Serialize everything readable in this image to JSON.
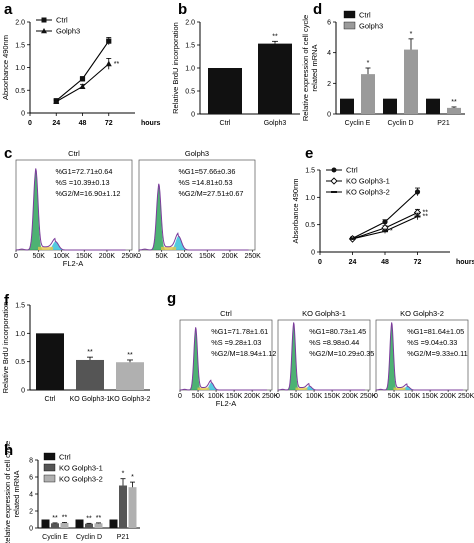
{
  "colors": {
    "ctrl": "#111111",
    "golph3": "#9a9a9a",
    "ko1": "#555555",
    "ko2": "#b0b0b0",
    "hist_purple": "#7b3c9b",
    "hist_green": "#2ea55a",
    "hist_cyan": "#36c1d9"
  },
  "chart_data": [
    {
      "panel": "a",
      "type": "line",
      "x": [
        0,
        24,
        48,
        72
      ],
      "xticks": [
        0,
        24,
        48,
        72
      ],
      "xunit": "hours",
      "xlim": [
        0,
        96
      ],
      "ylim": [
        0,
        2.0
      ],
      "yticks": [
        0,
        0.5,
        1.0,
        1.5,
        2.0
      ],
      "ytick_labels": [
        "0",
        "0.5",
        "1.0",
        "1.5",
        "2.0"
      ],
      "ylabel": "Absorbance 490nm",
      "series": [
        {
          "name": "Ctrl",
          "values": [
            null,
            0.27,
            0.75,
            1.58
          ],
          "errors": [
            null,
            0.03,
            0.05,
            0.08
          ],
          "marker": "square"
        },
        {
          "name": "Golph3",
          "values": [
            null,
            0.25,
            0.58,
            1.08
          ],
          "errors": [
            null,
            0.03,
            0.05,
            0.12
          ],
          "marker": "triangle"
        }
      ],
      "annotations": [
        {
          "text": "**",
          "x": 72,
          "series": 1
        }
      ]
    },
    {
      "panel": "b",
      "type": "bar",
      "categories": [
        "Ctrl",
        "Golph3"
      ],
      "values": [
        1.0,
        1.53
      ],
      "errors": [
        0,
        0.05
      ],
      "ylim": [
        0,
        2.0
      ],
      "yticks": [
        0,
        0.5,
        1.0,
        1.5,
        2.0
      ],
      "ytick_labels": [
        "0",
        "0.5",
        "1.0",
        "1.5",
        "2.0"
      ],
      "ylabel": "Relative BrdU incorporation",
      "bar_colors": [
        "#111111",
        "#111111"
      ],
      "annotations": [
        {
          "text": "**",
          "index": 1
        }
      ]
    },
    {
      "panel": "d",
      "type": "bar",
      "categories": [
        "Cyclin E",
        "Cyclin D",
        "P21"
      ],
      "ylim": [
        0,
        6
      ],
      "yticks": [
        0,
        2,
        4,
        6
      ],
      "ytick_labels": [
        "0",
        "2",
        "4",
        "6"
      ],
      "ylabel": "Relative expression of cell cycle related mRNA",
      "series": [
        {
          "name": "Ctrl",
          "values": [
            1.0,
            1.0,
            1.0
          ],
          "errors": [
            0,
            0,
            0
          ]
        },
        {
          "name": "Golph3",
          "values": [
            2.6,
            4.2,
            0.4
          ],
          "errors": [
            0.4,
            0.7,
            0.06
          ]
        }
      ],
      "annotations": [
        {
          "text": "*",
          "category": 0,
          "series": 1
        },
        {
          "text": "*",
          "category": 1,
          "series": 1
        },
        {
          "text": "**",
          "category": 2,
          "series": 1
        }
      ]
    },
    {
      "panel": "e",
      "type": "line",
      "x": [
        0,
        24,
        48,
        72
      ],
      "xticks": [
        0,
        24,
        48,
        72
      ],
      "xunit": "hours",
      "xlim": [
        0,
        96
      ],
      "ylim": [
        0,
        1.5
      ],
      "yticks": [
        0,
        0.5,
        1.0,
        1.5
      ],
      "ytick_labels": [
        "0",
        "0.5",
        "1.0",
        "1.5"
      ],
      "ylabel": "Absorbance 490nm",
      "series": [
        {
          "name": "Ctrl",
          "values": [
            null,
            0.25,
            0.55,
            1.1
          ],
          "errors": [
            null,
            0.02,
            0.04,
            0.07
          ],
          "marker": "circle"
        },
        {
          "name": "KO Golph3-1",
          "values": [
            null,
            0.24,
            0.44,
            0.72
          ],
          "errors": [
            null,
            0.02,
            0.04,
            0.06
          ],
          "marker": "diamond"
        },
        {
          "name": "KO Golph3-2",
          "values": [
            null,
            0.24,
            0.38,
            0.65
          ],
          "errors": [
            null,
            0.02,
            0.04,
            0.06
          ],
          "marker": "dash"
        }
      ],
      "annotations": [
        {
          "text": "*",
          "x": 48,
          "series": 2
        },
        {
          "text": "**",
          "x": 72,
          "series": 1
        },
        {
          "text": "**",
          "x": 72,
          "series": 2
        }
      ]
    },
    {
      "panel": "f",
      "type": "bar",
      "categories": [
        "Ctrl",
        "KO Golph3-1",
        "KO Golph3-2"
      ],
      "values": [
        1.0,
        0.53,
        0.49
      ],
      "errors": [
        0,
        0.05,
        0.04
      ],
      "ylim": [
        0,
        1.5
      ],
      "yticks": [
        0,
        0.5,
        1.0,
        1.5
      ],
      "ytick_labels": [
        "0",
        "0.5",
        "1.0",
        "1.5"
      ],
      "ylabel": "Relative BrdU incorporation",
      "bar_colors": [
        "#111111",
        "#555555",
        "#b0b0b0"
      ],
      "annotations": [
        {
          "text": "**",
          "index": 1
        },
        {
          "text": "**",
          "index": 2
        }
      ]
    },
    {
      "panel": "h",
      "type": "bar",
      "categories": [
        "Cyclin E",
        "Cyclin D",
        "P21"
      ],
      "ylim": [
        0,
        8
      ],
      "yticks": [
        0,
        2,
        4,
        6,
        8
      ],
      "ytick_labels": [
        "0",
        "2",
        "4",
        "6",
        "8"
      ],
      "ylabel": "Relative expression of cell cycle related mRNA",
      "series": [
        {
          "name": "Ctrl",
          "values": [
            1.0,
            1.0,
            1.0
          ],
          "errors": [
            0,
            0,
            0
          ]
        },
        {
          "name": "KO Golph3-1",
          "values": [
            0.55,
            0.5,
            5.0
          ],
          "errors": [
            0.05,
            0.05,
            0.8
          ]
        },
        {
          "name": "KO Golph3-2",
          "values": [
            0.6,
            0.55,
            4.8
          ],
          "errors": [
            0.06,
            0.05,
            0.6
          ]
        }
      ],
      "annotations": [
        {
          "text": "**",
          "category": 0,
          "series": 1
        },
        {
          "text": "**",
          "category": 0,
          "series": 2
        },
        {
          "text": "**",
          "category": 1,
          "series": 1
        },
        {
          "text": "**",
          "category": 1,
          "series": 2
        },
        {
          "text": "*",
          "category": 2,
          "series": 1
        },
        {
          "text": "*",
          "category": 2,
          "series": 2
        }
      ]
    }
  ],
  "flow": {
    "c": {
      "xlabel": "FL2-A",
      "xticks": [
        "0",
        "50K",
        "100K",
        "150K",
        "200K",
        "250K"
      ],
      "panels": [
        {
          "title": "Ctrl",
          "stats": [
            "%G1=72.71±0.64",
            "%S =10.39±0.13",
            "%G2/M=16.90±1.12"
          ],
          "g1": 0.7271,
          "s": 0.1039,
          "g2m": 0.169
        },
        {
          "title": "Golph3",
          "stats": [
            "%G1=57.66±0.36",
            "%S =14.81±0.53",
            "%G2/M=27.51±0.67"
          ],
          "g1": 0.5766,
          "s": 0.1481,
          "g2m": 0.2751
        }
      ]
    },
    "g": {
      "xlabel": "FL2-A",
      "xticks": [
        "0",
        "50K",
        "100K",
        "150K",
        "200K",
        "250K"
      ],
      "panels": [
        {
          "title": "Ctrl",
          "stats": [
            "%G1=71.78±1.61",
            "%S =9.28±1.03",
            "%G2/M=18.94±1.12"
          ],
          "g1": 0.7178,
          "s": 0.0928,
          "g2m": 0.1894
        },
        {
          "title": "KO Golph3-1",
          "stats": [
            "%G1=80.73±1.45",
            "%S =8.98±0.44",
            "%G2/M=10.29±0.35"
          ],
          "g1": 0.8073,
          "s": 0.0898,
          "g2m": 0.1029
        },
        {
          "title": "KO Golph3-2",
          "stats": [
            "%G1=81.64±1.05",
            "%S =9.04±0.33",
            "%G2/M=9.33±0.11"
          ],
          "g1": 0.8164,
          "s": 0.0904,
          "g2m": 0.0933
        }
      ]
    }
  },
  "panel_labels": [
    "a",
    "b",
    "c",
    "d",
    "e",
    "f",
    "g",
    "h"
  ]
}
